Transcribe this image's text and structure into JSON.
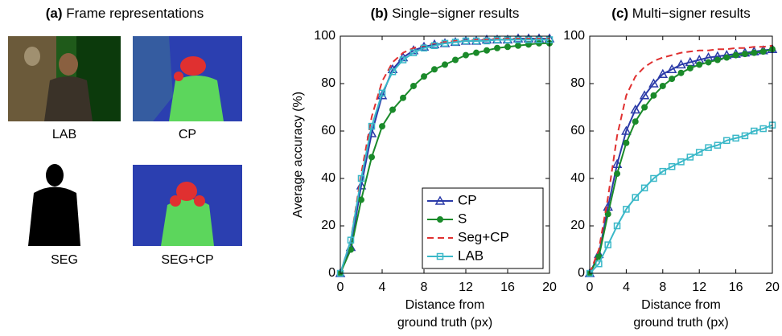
{
  "panel_a": {
    "title": {
      "label": "(a)",
      "text": "Frame representations"
    },
    "images": [
      {
        "caption": "LAB"
      },
      {
        "caption": "CP"
      },
      {
        "caption": "SEG"
      },
      {
        "caption": "SEG+CP"
      }
    ]
  },
  "chart_data": [
    {
      "type": "line",
      "title": {
        "label": "(b)",
        "text": "Single−signer results"
      },
      "ylabel": "Average accuracy (%)",
      "xlabel": [
        "Distance from",
        "ground truth (px)"
      ],
      "x": [
        0,
        1,
        2,
        3,
        4,
        5,
        6,
        7,
        8,
        9,
        10,
        11,
        12,
        13,
        14,
        15,
        16,
        17,
        18,
        19,
        20
      ],
      "xlim": [
        0,
        20
      ],
      "xticks": [
        0,
        4,
        8,
        12,
        16,
        20
      ],
      "ylim": [
        0,
        100
      ],
      "yticks": [
        0,
        20,
        40,
        60,
        80,
        100
      ],
      "legend": "lower right",
      "series": [
        {
          "name": "CP",
          "color": "#2b3ba8",
          "marker": "triangle",
          "values": [
            0,
            11,
            37,
            59,
            75,
            86,
            91,
            94,
            95.5,
            96.5,
            97,
            97.5,
            98,
            98,
            98.5,
            98.5,
            98.5,
            99,
            99,
            99,
            99
          ]
        },
        {
          "name": "S",
          "color": "#1a8a2a",
          "marker": "circle",
          "values": [
            0,
            10,
            31,
            49,
            62,
            69,
            74,
            79,
            83,
            86,
            88,
            90,
            92,
            93,
            94,
            95,
            95.5,
            96,
            96.5,
            97,
            97
          ]
        },
        {
          "name": "Seg+CP",
          "color": "#e03030",
          "dash": true,
          "values": [
            0,
            14,
            42,
            66,
            81,
            89,
            93,
            95,
            96,
            97,
            97.5,
            98,
            98,
            98.5,
            98.5,
            99,
            99,
            99,
            99,
            99,
            99
          ]
        },
        {
          "name": "LAB",
          "color": "#3ab8c8",
          "marker": "square",
          "values": [
            0,
            14,
            40,
            62,
            76,
            85,
            90,
            93,
            95,
            96,
            97,
            97.5,
            98,
            98,
            98,
            98.5,
            98.5,
            98.5,
            98.5,
            98.5,
            98.5
          ]
        }
      ]
    },
    {
      "type": "line",
      "title": {
        "label": "(c)",
        "text": "Multi−signer results"
      },
      "xlabel": [
        "Distance from",
        "ground truth (px)"
      ],
      "x": [
        0,
        1,
        2,
        3,
        4,
        5,
        6,
        7,
        8,
        9,
        10,
        11,
        12,
        13,
        14,
        15,
        16,
        17,
        18,
        19,
        20
      ],
      "xlim": [
        0,
        20
      ],
      "xticks": [
        0,
        4,
        8,
        12,
        16,
        20
      ],
      "ylim": [
        0,
        100
      ],
      "yticks": [
        0,
        20,
        40,
        60,
        80,
        100
      ],
      "series": [
        {
          "color": "#2b3ba8",
          "marker": "triangle",
          "values": [
            0,
            8,
            28,
            46,
            60,
            69,
            75,
            80,
            84,
            86,
            88,
            89,
            90,
            91,
            91.5,
            92,
            92.5,
            93,
            93.5,
            94,
            94.5
          ]
        },
        {
          "color": "#1a8a2a",
          "marker": "circle",
          "values": [
            0,
            7,
            25,
            42,
            55,
            64,
            70,
            75,
            79,
            82,
            84.5,
            86.5,
            88,
            89,
            90,
            91,
            92,
            92.5,
            93,
            93.5,
            94.5
          ]
        },
        {
          "color": "#e03030",
          "dash": true,
          "values": [
            0,
            10,
            32,
            58,
            75,
            83,
            87,
            89.5,
            91,
            92,
            93,
            93.5,
            94,
            94,
            94.5,
            94.5,
            95,
            95,
            95.5,
            95.5,
            96
          ]
        },
        {
          "color": "#3ab8c8",
          "marker": "square",
          "values": [
            0,
            4,
            12,
            20,
            27,
            32,
            36,
            40,
            43,
            45,
            47,
            49,
            51,
            53,
            54,
            56,
            57,
            58,
            60,
            61,
            62.5
          ]
        }
      ]
    }
  ]
}
